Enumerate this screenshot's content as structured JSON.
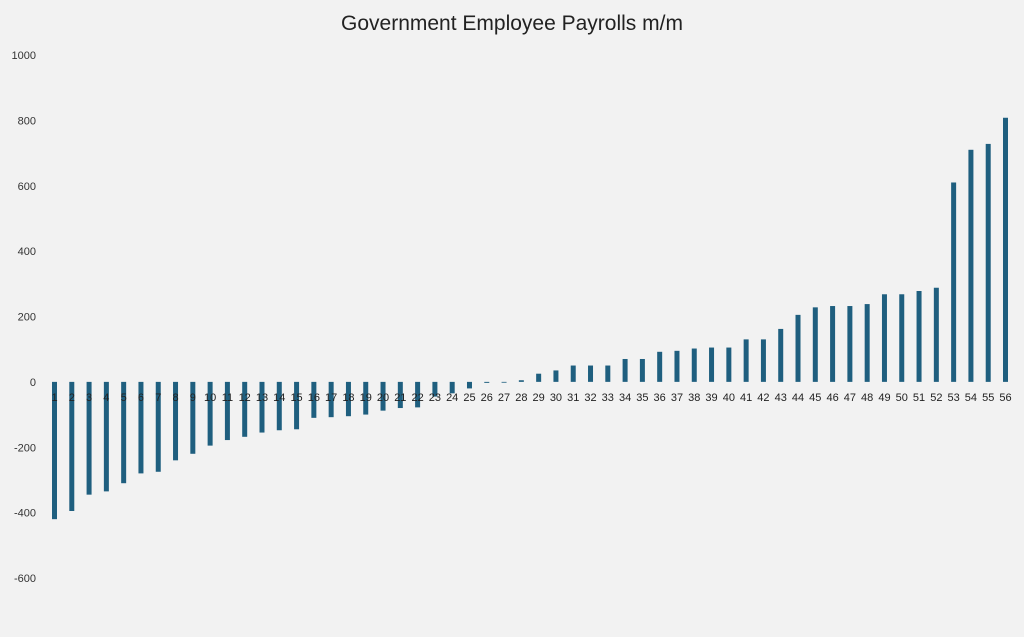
{
  "chart_data": {
    "type": "bar",
    "title": "Government Employee Payrolls m/m",
    "xlabel": "",
    "ylabel": "",
    "ylim": [
      -600,
      1000
    ],
    "yticks": [
      -600,
      -400,
      -200,
      0,
      200,
      400,
      600,
      800,
      1000
    ],
    "grid": false,
    "legend": "none",
    "bar_color": "#1f5f7f",
    "categories": [
      "1",
      "2",
      "3",
      "4",
      "5",
      "6",
      "7",
      "8",
      "9",
      "10",
      "11",
      "12",
      "13",
      "14",
      "15",
      "16",
      "17",
      "18",
      "19",
      "20",
      "21",
      "22",
      "23",
      "24",
      "25",
      "26",
      "27",
      "28",
      "29",
      "30",
      "31",
      "32",
      "33",
      "34",
      "35",
      "36",
      "37",
      "38",
      "39",
      "40",
      "41",
      "42",
      "43",
      "44",
      "45",
      "46",
      "47",
      "48",
      "49",
      "50",
      "51",
      "52",
      "53",
      "54",
      "55",
      "56"
    ],
    "values": [
      -420,
      -395,
      -345,
      -335,
      -310,
      -280,
      -275,
      -240,
      -220,
      -195,
      -178,
      -168,
      -155,
      -148,
      -145,
      -110,
      -108,
      -105,
      -100,
      -88,
      -80,
      -78,
      -45,
      -35,
      -20,
      -3,
      -2,
      5,
      25,
      35,
      50,
      50,
      50,
      70,
      70,
      92,
      95,
      102,
      105,
      105,
      130,
      130,
      162,
      205,
      228,
      232,
      232,
      238,
      268,
      268,
      278,
      288,
      610,
      710,
      728,
      808
    ]
  }
}
